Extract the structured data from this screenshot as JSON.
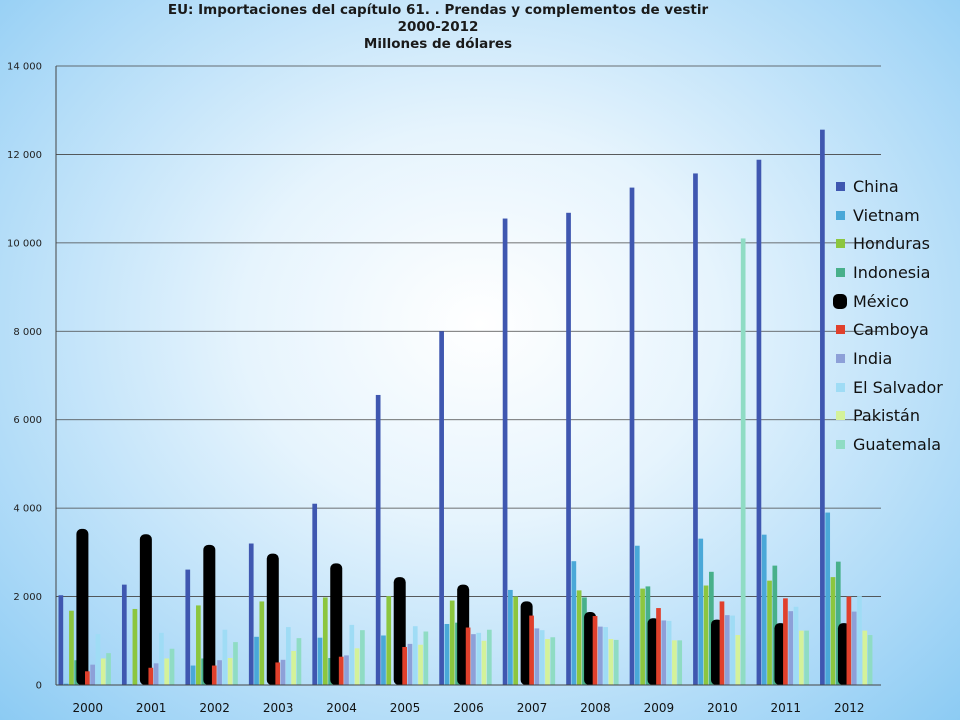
{
  "chart_data": {
    "type": "bar",
    "title": "EU: Importaciones del capítulo 61. . Prendas y complementos de vestir",
    "subtitle": "2000-2012",
    "ylabel_title": "Millones de dólares",
    "xlabel": "",
    "ylabel": "",
    "ylim": [
      0,
      14000
    ],
    "yticks": [
      0,
      2000,
      4000,
      6000,
      8000,
      10000,
      12000,
      14000
    ],
    "ytick_labels": [
      "0",
      "2 000",
      "4 000",
      "6 000",
      "8 000",
      "10 000",
      "12 000",
      "14 000"
    ],
    "grid": true,
    "legend_position": "right",
    "categories": [
      "2000",
      "2001",
      "2002",
      "2003",
      "2004",
      "2005",
      "2006",
      "2007",
      "2008",
      "2009",
      "2010",
      "2011",
      "2012"
    ],
    "series": [
      {
        "name": "China",
        "color": "#3f57b0",
        "values": [
          2030,
          2270,
          2610,
          3200,
          4100,
          6560,
          8000,
          10550,
          10680,
          11250,
          11570,
          11880,
          12560
        ]
      },
      {
        "name": "Vietnam",
        "color": "#4aa8d8",
        "values": [
          30,
          20,
          440,
          1090,
          1070,
          1120,
          1380,
          2150,
          2800,
          3150,
          3310,
          3400,
          3900
        ]
      },
      {
        "name": "Honduras",
        "color": "#8cc63f",
        "values": [
          1680,
          1720,
          1800,
          1890,
          1980,
          2010,
          1910,
          2000,
          2140,
          2180,
          2250,
          2360,
          2440
        ]
      },
      {
        "name": "Indonesia",
        "color": "#48b08a",
        "values": [
          560,
          10,
          600,
          0,
          610,
          0,
          1410,
          0,
          1980,
          2230,
          2560,
          2700,
          2790
        ]
      },
      {
        "name": "México",
        "color": "#000000",
        "values": [
          3530,
          3410,
          3170,
          2970,
          2750,
          2440,
          2270,
          1890,
          1650,
          1510,
          1480,
          1400,
          1400
        ]
      },
      {
        "name": "Camboya",
        "color": "#e0402c",
        "values": [
          310,
          390,
          440,
          510,
          640,
          860,
          1300,
          1570,
          1560,
          1740,
          1890,
          1960,
          2000
        ]
      },
      {
        "name": "India",
        "color": "#8da0d8",
        "values": [
          460,
          490,
          560,
          570,
          670,
          930,
          1150,
          1280,
          1320,
          1460,
          1580,
          1670,
          1660
        ]
      },
      {
        "name": "El Salvador",
        "color": "#9fdcf5",
        "values": [
          1150,
          1180,
          1250,
          1310,
          1360,
          1330,
          1180,
          1240,
          1310,
          1450,
          1570,
          1770,
          2010
        ]
      },
      {
        "name": "Pakistán",
        "color": "#d4f29a",
        "values": [
          600,
          600,
          610,
          770,
          830,
          910,
          1000,
          1040,
          1040,
          1010,
          1130,
          1230,
          1230
        ]
      },
      {
        "name": "Guatemala",
        "color": "#8fdcc4",
        "values": [
          720,
          820,
          970,
          1060,
          1240,
          1210,
          1250,
          1080,
          1020,
          1010,
          10100,
          1230,
          1130
        ]
      }
    ]
  }
}
